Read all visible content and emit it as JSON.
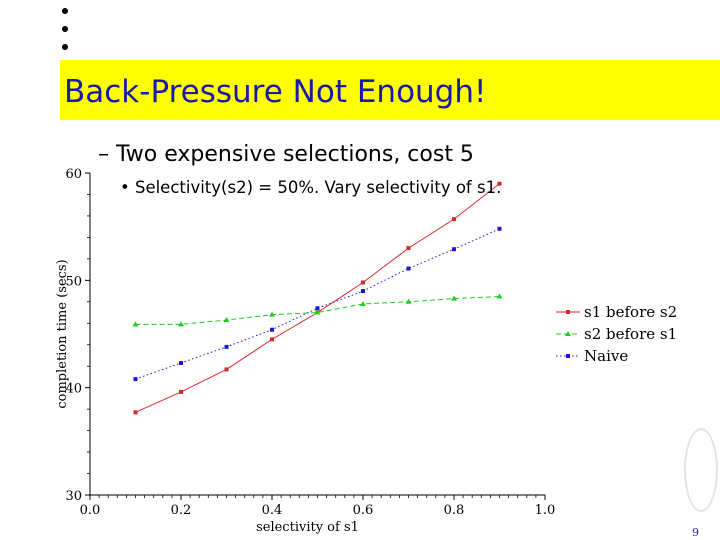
{
  "slide": {
    "title": "Back-Pressure Not Enough!",
    "bullet_1": "– Two expensive selections, cost 5",
    "bullet_2": "• Selectivity(s2) = 50%.  Vary selectivity of s1.",
    "page_number": "9"
  },
  "colors": {
    "title_bar": "#ffff00",
    "title_text": "#1a1aa6",
    "s1_before_s2": "#d42a2a",
    "s2_before_s1": "#22cc22",
    "naive": "#1a1ad0"
  },
  "chart_data": {
    "type": "line",
    "title": "",
    "xlabel": "selectivity of s1",
    "ylabel": "completion time (secs)",
    "xlim": [
      0.0,
      1.0
    ],
    "ylim": [
      30,
      60
    ],
    "x_ticks": [
      "0.0",
      "0.2",
      "0.4",
      "0.6",
      "0.8",
      "1.0"
    ],
    "y_ticks": [
      "30",
      "40",
      "50",
      "60"
    ],
    "x": [
      0.1,
      0.2,
      0.3,
      0.4,
      0.5,
      0.6,
      0.7,
      0.8,
      0.9
    ],
    "legend_position": "right",
    "series": [
      {
        "name": "s1 before s2",
        "color": "#d42a2a",
        "marker": "square",
        "dash": "solid",
        "values": [
          37.7,
          39.6,
          41.7,
          44.5,
          47.0,
          49.8,
          53.0,
          55.7,
          59.0
        ]
      },
      {
        "name": "s2 before s1",
        "color": "#22cc22",
        "marker": "triangle",
        "dash": "dashed",
        "values": [
          45.9,
          45.9,
          46.3,
          46.8,
          47.0,
          47.8,
          48.0,
          48.3,
          48.5
        ]
      },
      {
        "name": "Naive",
        "color": "#1a1ad0",
        "marker": "square",
        "dash": "dotted",
        "values": [
          40.8,
          42.3,
          43.8,
          45.4,
          47.4,
          49.0,
          51.1,
          52.9,
          54.8
        ]
      }
    ]
  }
}
